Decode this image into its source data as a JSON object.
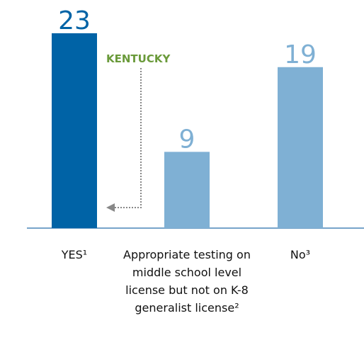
{
  "chart_data": {
    "type": "bar",
    "categories": [
      "YES¹",
      "Appropriate testing on middle school level license but not on K-8 generalist license²",
      "No³"
    ],
    "values": [
      23,
      9,
      19
    ],
    "colors": [
      "#0063a6",
      "#7fb0d4",
      "#7fb0d4"
    ],
    "annotation": "KENTUCKY"
  }
}
